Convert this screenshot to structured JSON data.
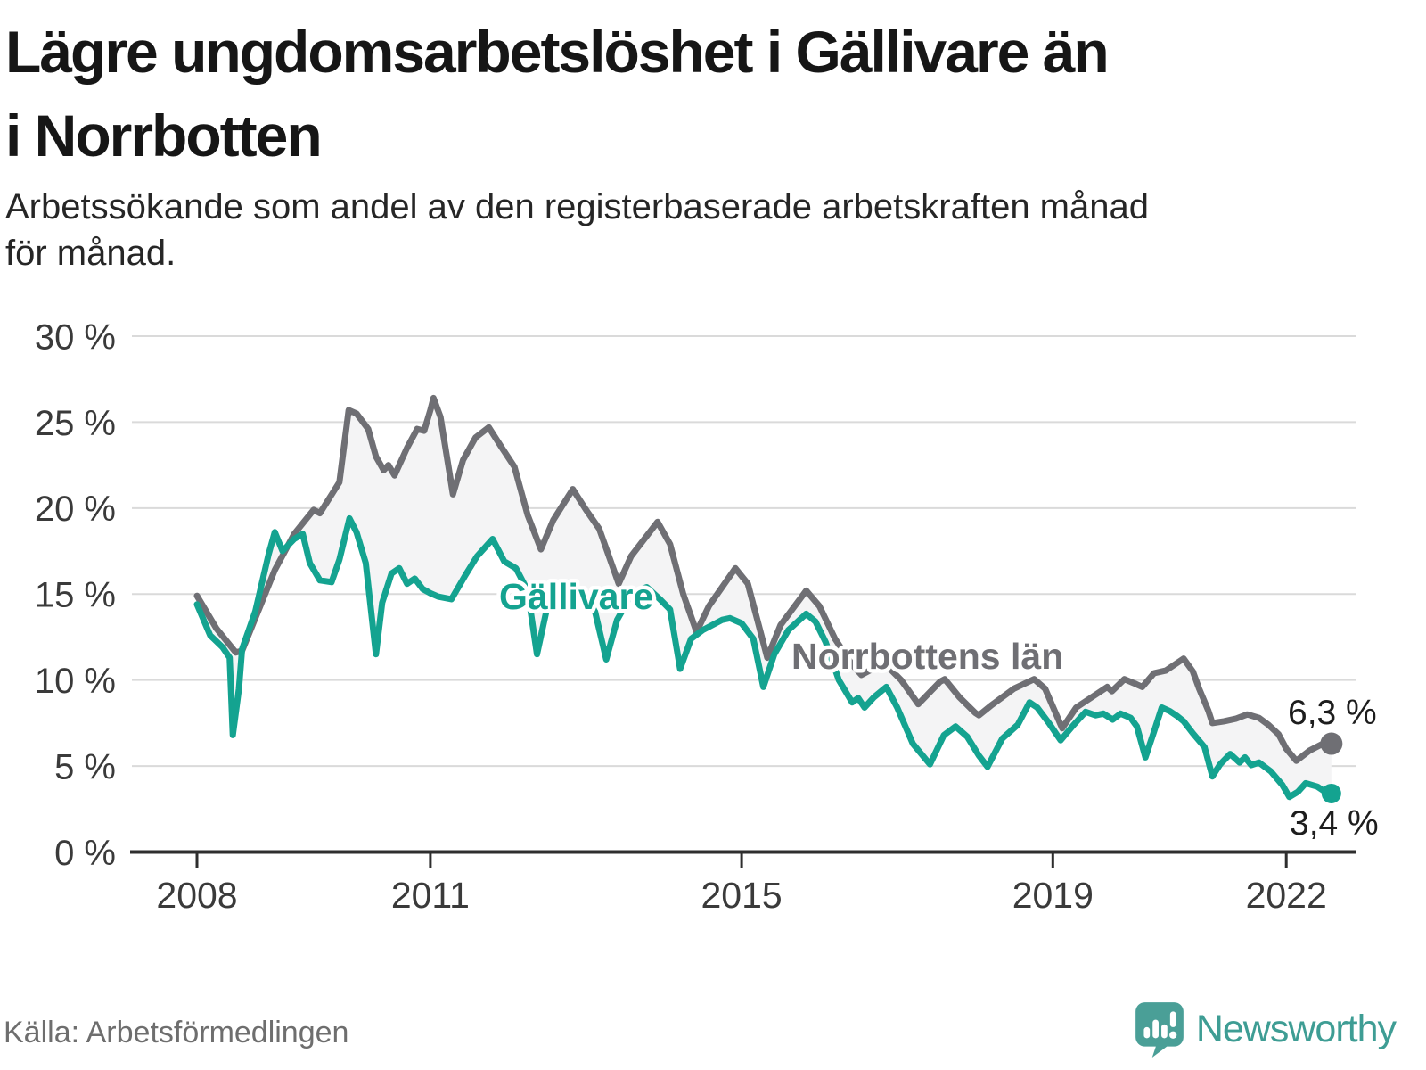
{
  "header": {
    "title": "Lägre ungdomsarbetslöshet i Gällivare än i Norrbotten",
    "title_lines": [
      "Lägre ungdomsarbetslöshet i Gällivare än",
      "i Norrbotten"
    ],
    "subtitle_lines": [
      "Arbetssökande som andel av den registerbaserade arbetskraften månad",
      "för månad."
    ]
  },
  "footer": {
    "source": "Källa: Arbetsförmedlingen",
    "brand": "Newsworthy"
  },
  "colors": {
    "teal": "#14a390",
    "gray": "#6f6f74",
    "band": "#f4f4f5",
    "grid": "#dadada",
    "axis": "#2e2e2e",
    "tick_text": "#3a3a3a",
    "value_text": "#1d1d1d",
    "logo": "#4a9f97"
  },
  "chart_data": {
    "type": "line",
    "title": "Lägre ungdomsarbetslöshet i Gällivare än i Norrbotten",
    "xlabel": "",
    "ylabel": "",
    "ylim": [
      0,
      30
    ],
    "xlim": [
      2007.9,
      2023.0
    ],
    "grid": "horizontal",
    "legend_position": "inline-labels",
    "y_unit": "%",
    "y_ticks": [
      {
        "value": 0,
        "label": "0 %"
      },
      {
        "value": 5,
        "label": "5 %"
      },
      {
        "value": 10,
        "label": "10 %"
      },
      {
        "value": 15,
        "label": "15 %"
      },
      {
        "value": 20,
        "label": "20 %"
      },
      {
        "value": 25,
        "label": "25 %"
      },
      {
        "value": 30,
        "label": "30 %"
      }
    ],
    "x_ticks": [
      {
        "value": 2008,
        "label": "2008"
      },
      {
        "value": 2011,
        "label": "2011"
      },
      {
        "value": 2015,
        "label": "2015"
      },
      {
        "value": 2019,
        "label": "2019"
      },
      {
        "value": 2022,
        "label": "2022"
      }
    ],
    "area_between_series": true,
    "series": [
      {
        "name": "Norrbottens län",
        "color": "#6f6f74",
        "end_label": "6,3 %",
        "end_value": 6.3,
        "points": [
          [
            2008.0,
            14.9
          ],
          [
            2008.25,
            13.0
          ],
          [
            2008.5,
            11.6
          ],
          [
            2008.58,
            11.7
          ],
          [
            2008.83,
            14.5
          ],
          [
            2009.0,
            16.4
          ],
          [
            2009.25,
            18.5
          ],
          [
            2009.5,
            19.9
          ],
          [
            2009.58,
            19.7
          ],
          [
            2009.83,
            21.5
          ],
          [
            2009.95,
            25.7
          ],
          [
            2010.05,
            25.5
          ],
          [
            2010.2,
            24.6
          ],
          [
            2010.3,
            23.0
          ],
          [
            2010.4,
            22.2
          ],
          [
            2010.46,
            22.5
          ],
          [
            2010.54,
            21.9
          ],
          [
            2010.7,
            23.5
          ],
          [
            2010.83,
            24.6
          ],
          [
            2010.92,
            24.5
          ],
          [
            2011.0,
            25.7
          ],
          [
            2011.04,
            26.4
          ],
          [
            2011.13,
            25.3
          ],
          [
            2011.29,
            20.8
          ],
          [
            2011.42,
            22.8
          ],
          [
            2011.58,
            24.1
          ],
          [
            2011.75,
            24.7
          ],
          [
            2011.92,
            23.5
          ],
          [
            2012.08,
            22.4
          ],
          [
            2012.25,
            19.6
          ],
          [
            2012.42,
            17.6
          ],
          [
            2012.58,
            19.3
          ],
          [
            2012.83,
            21.1
          ],
          [
            2013.0,
            19.9
          ],
          [
            2013.17,
            18.8
          ],
          [
            2013.42,
            15.6
          ],
          [
            2013.58,
            17.2
          ],
          [
            2013.92,
            19.2
          ],
          [
            2014.08,
            17.9
          ],
          [
            2014.25,
            15.0
          ],
          [
            2014.42,
            12.8
          ],
          [
            2014.58,
            14.3
          ],
          [
            2014.92,
            16.5
          ],
          [
            2015.08,
            15.6
          ],
          [
            2015.33,
            11.3
          ],
          [
            2015.5,
            13.2
          ],
          [
            2015.83,
            15.2
          ],
          [
            2016.0,
            14.3
          ],
          [
            2016.2,
            12.4
          ],
          [
            2016.42,
            10.9
          ],
          [
            2016.54,
            10.3
          ],
          [
            2016.83,
            11.0
          ],
          [
            2017.05,
            10.0
          ],
          [
            2017.27,
            8.6
          ],
          [
            2017.55,
            9.9
          ],
          [
            2017.61,
            10.05
          ],
          [
            2017.8,
            9.0
          ],
          [
            2018.0,
            8.1
          ],
          [
            2018.05,
            7.95
          ],
          [
            2018.2,
            8.5
          ],
          [
            2018.5,
            9.5
          ],
          [
            2018.76,
            10.05
          ],
          [
            2018.9,
            9.5
          ],
          [
            2019.12,
            7.2
          ],
          [
            2019.3,
            8.4
          ],
          [
            2019.5,
            9.0
          ],
          [
            2019.7,
            9.6
          ],
          [
            2019.76,
            9.35
          ],
          [
            2019.92,
            10.05
          ],
          [
            2020.05,
            9.8
          ],
          [
            2020.15,
            9.6
          ],
          [
            2020.3,
            10.4
          ],
          [
            2020.45,
            10.55
          ],
          [
            2020.68,
            11.25
          ],
          [
            2020.8,
            10.5
          ],
          [
            2020.88,
            9.5
          ],
          [
            2021.0,
            8.2
          ],
          [
            2021.05,
            7.5
          ],
          [
            2021.2,
            7.6
          ],
          [
            2021.35,
            7.75
          ],
          [
            2021.5,
            8.0
          ],
          [
            2021.65,
            7.8
          ],
          [
            2021.77,
            7.4
          ],
          [
            2021.9,
            6.85
          ],
          [
            2022.0,
            6.0
          ],
          [
            2022.13,
            5.3
          ],
          [
            2022.3,
            5.9
          ],
          [
            2022.45,
            6.25
          ],
          [
            2022.58,
            6.3
          ]
        ]
      },
      {
        "name": "Gällivare",
        "color": "#14a390",
        "end_label": "3,4 %",
        "end_value": 3.4,
        "points": [
          [
            2008.0,
            14.4
          ],
          [
            2008.17,
            12.6
          ],
          [
            2008.33,
            11.9
          ],
          [
            2008.42,
            11.3
          ],
          [
            2008.46,
            6.8
          ],
          [
            2008.54,
            9.5
          ],
          [
            2008.58,
            11.8
          ],
          [
            2008.75,
            14.0
          ],
          [
            2008.92,
            17.3
          ],
          [
            2009.0,
            18.6
          ],
          [
            2009.1,
            17.5
          ],
          [
            2009.25,
            18.2
          ],
          [
            2009.36,
            18.5
          ],
          [
            2009.45,
            16.8
          ],
          [
            2009.58,
            15.8
          ],
          [
            2009.73,
            15.7
          ],
          [
            2009.83,
            17.0
          ],
          [
            2009.96,
            19.4
          ],
          [
            2010.05,
            18.6
          ],
          [
            2010.17,
            16.8
          ],
          [
            2010.3,
            11.5
          ],
          [
            2010.38,
            14.5
          ],
          [
            2010.5,
            16.2
          ],
          [
            2010.6,
            16.5
          ],
          [
            2010.7,
            15.6
          ],
          [
            2010.8,
            15.9
          ],
          [
            2010.9,
            15.3
          ],
          [
            2011.0,
            15.05
          ],
          [
            2011.1,
            14.85
          ],
          [
            2011.27,
            14.7
          ],
          [
            2011.45,
            16.1
          ],
          [
            2011.6,
            17.2
          ],
          [
            2011.8,
            18.2
          ],
          [
            2011.95,
            16.9
          ],
          [
            2012.1,
            16.5
          ],
          [
            2012.25,
            15.2
          ],
          [
            2012.37,
            11.5
          ],
          [
            2012.5,
            14.2
          ],
          [
            2012.65,
            15.4
          ],
          [
            2012.8,
            15.7
          ],
          [
            2013.0,
            14.9
          ],
          [
            2013.1,
            14.3
          ],
          [
            2013.26,
            11.2
          ],
          [
            2013.4,
            13.5
          ],
          [
            2013.6,
            15.1
          ],
          [
            2013.78,
            15.4
          ],
          [
            2013.95,
            14.7
          ],
          [
            2014.08,
            14.1
          ],
          [
            2014.21,
            10.65
          ],
          [
            2014.35,
            12.4
          ],
          [
            2014.5,
            12.9
          ],
          [
            2014.75,
            13.5
          ],
          [
            2014.85,
            13.6
          ],
          [
            2015.0,
            13.3
          ],
          [
            2015.15,
            12.4
          ],
          [
            2015.28,
            9.6
          ],
          [
            2015.42,
            11.5
          ],
          [
            2015.6,
            12.9
          ],
          [
            2015.83,
            13.85
          ],
          [
            2015.95,
            13.4
          ],
          [
            2016.08,
            12.2
          ],
          [
            2016.25,
            10.0
          ],
          [
            2016.42,
            8.7
          ],
          [
            2016.5,
            8.95
          ],
          [
            2016.58,
            8.4
          ],
          [
            2016.7,
            9.0
          ],
          [
            2016.86,
            9.6
          ],
          [
            2017.0,
            8.4
          ],
          [
            2017.2,
            6.3
          ],
          [
            2017.42,
            5.1
          ],
          [
            2017.6,
            6.8
          ],
          [
            2017.75,
            7.3
          ],
          [
            2017.9,
            6.7
          ],
          [
            2018.05,
            5.6
          ],
          [
            2018.16,
            4.95
          ],
          [
            2018.35,
            6.6
          ],
          [
            2018.55,
            7.4
          ],
          [
            2018.7,
            8.7
          ],
          [
            2018.8,
            8.4
          ],
          [
            2018.95,
            7.5
          ],
          [
            2019.1,
            6.5
          ],
          [
            2019.25,
            7.3
          ],
          [
            2019.42,
            8.15
          ],
          [
            2019.55,
            7.95
          ],
          [
            2019.65,
            8.05
          ],
          [
            2019.77,
            7.7
          ],
          [
            2019.87,
            8.05
          ],
          [
            2020.0,
            7.8
          ],
          [
            2020.08,
            7.3
          ],
          [
            2020.19,
            5.5
          ],
          [
            2020.3,
            7.0
          ],
          [
            2020.4,
            8.4
          ],
          [
            2020.5,
            8.2
          ],
          [
            2020.6,
            7.9
          ],
          [
            2020.68,
            7.6
          ],
          [
            2020.8,
            6.9
          ],
          [
            2020.95,
            6.1
          ],
          [
            2021.05,
            4.4
          ],
          [
            2021.15,
            5.1
          ],
          [
            2021.28,
            5.7
          ],
          [
            2021.4,
            5.2
          ],
          [
            2021.47,
            5.5
          ],
          [
            2021.55,
            5.05
          ],
          [
            2021.65,
            5.2
          ],
          [
            2021.8,
            4.7
          ],
          [
            2021.95,
            3.9
          ],
          [
            2022.04,
            3.2
          ],
          [
            2022.15,
            3.5
          ],
          [
            2022.25,
            4.0
          ],
          [
            2022.4,
            3.8
          ],
          [
            2022.5,
            3.5
          ],
          [
            2022.58,
            3.4
          ]
        ]
      }
    ]
  }
}
